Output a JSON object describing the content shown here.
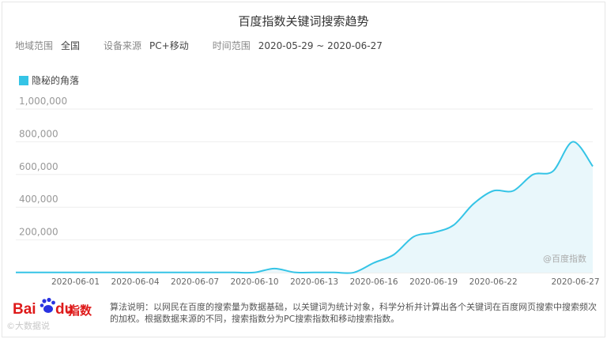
{
  "title": "百度指数关键词搜索趋势",
  "filters": [
    {
      "label": "地域范围",
      "value": "全国"
    },
    {
      "label": "设备来源",
      "value": "PC+移动"
    },
    {
      "label": "时间范围",
      "value": "2020-05-29 ~ 2020-06-27"
    }
  ],
  "colors": {
    "line": "#35c4e6",
    "fill": "#e9f7fb",
    "grid": "#eeeeee"
  },
  "chart_data": {
    "type": "area",
    "legend": "隐秘的角落",
    "watermark": "@百度指数",
    "y_ticks": [
      "200,000",
      "400,000",
      "600,000",
      "800,000",
      "1,000,000"
    ],
    "ylim": [
      0,
      1000000
    ],
    "x_tick_labels": [
      "2020-06-01",
      "2020-06-04",
      "2020-06-07",
      "2020-06-10",
      "2020-06-13",
      "2020-06-16",
      "2020-06-19",
      "2020-06-22",
      "2020-06-27"
    ],
    "x": [
      "2020-05-29",
      "2020-05-30",
      "2020-05-31",
      "2020-06-01",
      "2020-06-02",
      "2020-06-03",
      "2020-06-04",
      "2020-06-05",
      "2020-06-06",
      "2020-06-07",
      "2020-06-08",
      "2020-06-09",
      "2020-06-10",
      "2020-06-11",
      "2020-06-12",
      "2020-06-13",
      "2020-06-14",
      "2020-06-15",
      "2020-06-16",
      "2020-06-17",
      "2020-06-18",
      "2020-06-19",
      "2020-06-20",
      "2020-06-21",
      "2020-06-22",
      "2020-06-23",
      "2020-06-24",
      "2020-06-25",
      "2020-06-26",
      "2020-06-27"
    ],
    "series": [
      {
        "name": "隐秘的角落",
        "values": [
          1000,
          1000,
          1000,
          1000,
          1000,
          1000,
          1000,
          1000,
          1000,
          1000,
          1000,
          1000,
          1000,
          25000,
          2000,
          1000,
          1000,
          1000,
          60000,
          110000,
          220000,
          245000,
          290000,
          420000,
          500000,
          500000,
          600000,
          620000,
          800000,
          650000
        ]
      }
    ]
  },
  "footer": {
    "logo_bai": "Bai",
    "logo_du": "du",
    "logo_zhishu": "指数",
    "credit": "©大数据说",
    "note": "算法说明：以网民在百度的搜索量为数据基础，以关键词为统计对象，科学分析并计算出各个关键词在百度网页搜索中搜索频次的加权。根据数据来源的不同，搜索指数分为PC搜索指数和移动搜索指数。"
  }
}
